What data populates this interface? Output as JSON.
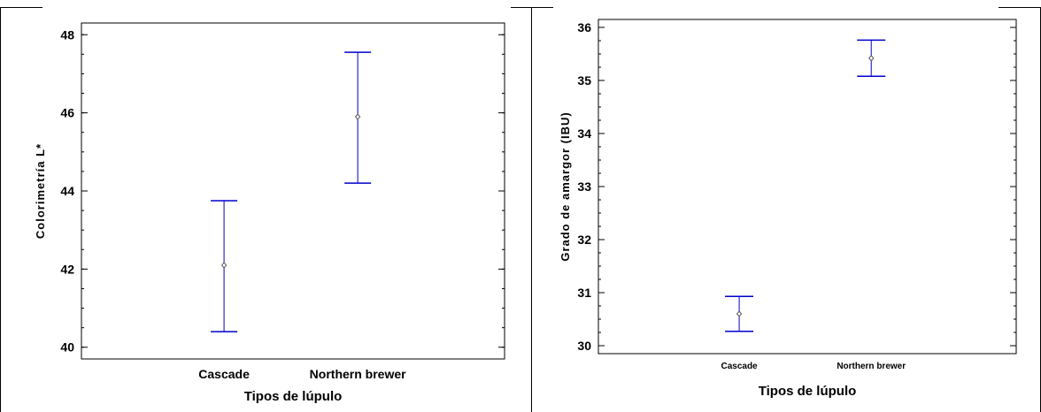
{
  "chart_data": [
    {
      "type": "errorbar",
      "xlabel": "Tipos de lúpulo",
      "ylabel": "Colorimetría L*",
      "categories": [
        "Cascade",
        "Northern brewer"
      ],
      "means": [
        42.1,
        45.9
      ],
      "lower": [
        40.4,
        44.2
      ],
      "upper": [
        43.75,
        47.55
      ],
      "ylim": [
        39.7,
        48.3
      ],
      "yticks": [
        40,
        42,
        44,
        46,
        48
      ],
      "grid": false
    },
    {
      "type": "errorbar",
      "xlabel": "Tipos de lúpulo",
      "ylabel": "Grado de amargor (IBU)",
      "categories": [
        "Cascade",
        "Northern brewer"
      ],
      "means": [
        30.6,
        35.42
      ],
      "lower": [
        30.27,
        35.08
      ],
      "upper": [
        30.93,
        35.76
      ],
      "ylim": [
        29.85,
        36.15
      ],
      "yticks": [
        30,
        31,
        32,
        33,
        34,
        35,
        36
      ],
      "grid": false
    }
  ],
  "colors": {
    "interval": "#0000cc",
    "mean_marker": "#555555",
    "axes": "#000000"
  }
}
